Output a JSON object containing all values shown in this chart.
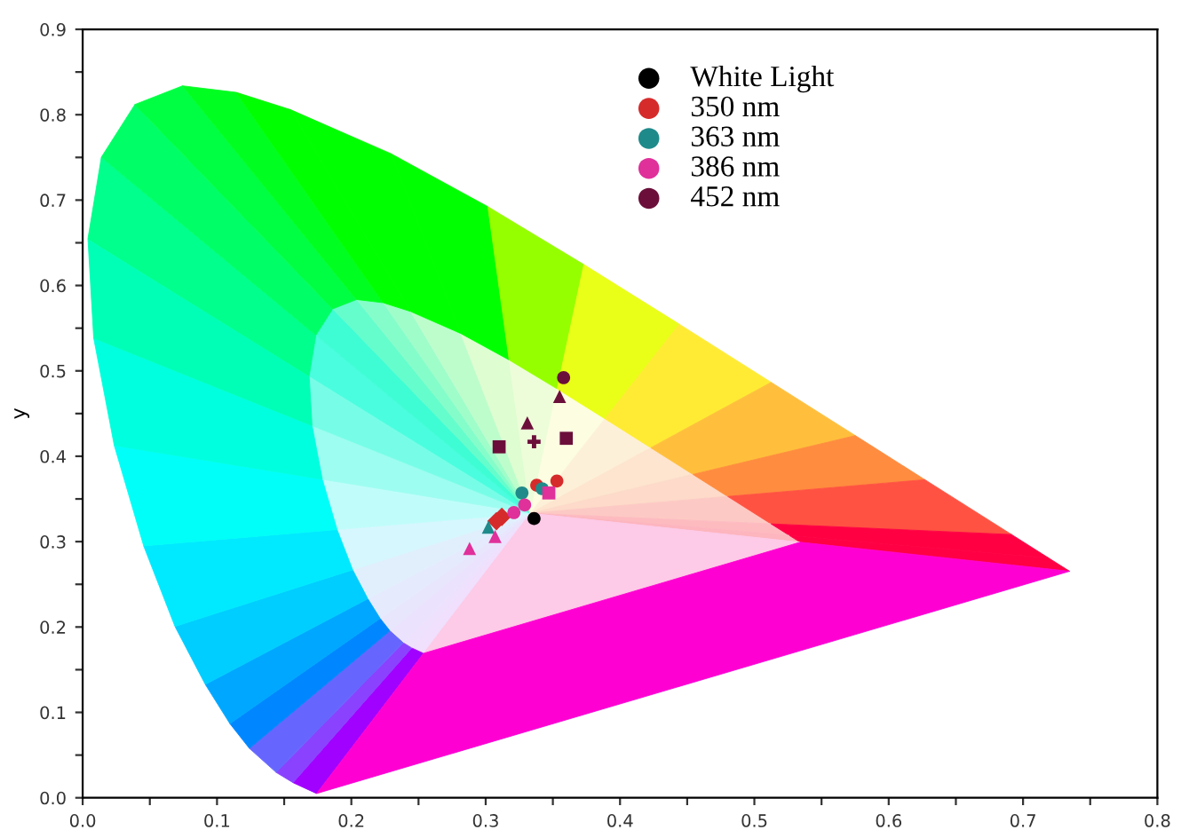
{
  "chart_data": {
    "type": "scatter",
    "ylabel": "y",
    "xlim": [
      0,
      0.8
    ],
    "ylim": [
      0,
      0.9
    ],
    "xticks": [
      {
        "value": 0,
        "label": "0.0"
      },
      {
        "value": 0.05,
        "label": null
      },
      {
        "value": 0.1,
        "label": "0.1"
      },
      {
        "value": 0.15,
        "label": null
      },
      {
        "value": 0.2,
        "label": "0.2"
      },
      {
        "value": 0.25,
        "label": null
      },
      {
        "value": 0.3,
        "label": "0.3"
      },
      {
        "value": 0.35,
        "label": null
      },
      {
        "value": 0.4,
        "label": "0.4"
      },
      {
        "value": 0.45,
        "label": null
      },
      {
        "value": 0.5,
        "label": "0.5"
      },
      {
        "value": 0.55,
        "label": null
      },
      {
        "value": 0.6,
        "label": "0.6"
      },
      {
        "value": 0.65,
        "label": null
      },
      {
        "value": 0.7,
        "label": "0.7"
      },
      {
        "value": 0.75,
        "label": null
      },
      {
        "value": 0.8,
        "label": "0.8"
      }
    ],
    "yticks": [
      {
        "value": 0,
        "label": "0.0"
      },
      {
        "value": 0.05,
        "label": null
      },
      {
        "value": 0.1,
        "label": "0.1"
      },
      {
        "value": 0.15,
        "label": null
      },
      {
        "value": 0.2,
        "label": "0.2"
      },
      {
        "value": 0.25,
        "label": null
      },
      {
        "value": 0.3,
        "label": "0.3"
      },
      {
        "value": 0.35,
        "label": null
      },
      {
        "value": 0.4,
        "label": "0.4"
      },
      {
        "value": 0.45,
        "label": null
      },
      {
        "value": 0.5,
        "label": "0.5"
      },
      {
        "value": 0.55,
        "label": null
      },
      {
        "value": 0.6,
        "label": "0.6"
      },
      {
        "value": 0.65,
        "label": null
      },
      {
        "value": 0.7,
        "label": "0.7"
      },
      {
        "value": 0.75,
        "label": null
      },
      {
        "value": 0.8,
        "label": "0.8"
      },
      {
        "value": 0.85,
        "label": null
      },
      {
        "value": 0.9,
        "label": "0.9"
      }
    ],
    "grid": false,
    "legend": "top right",
    "series": [
      {
        "name": "White Light",
        "color": "#000000",
        "marker": "circle",
        "x": [
          0.336
        ],
        "values": [
          0.327
        ]
      },
      {
        "name": "350 nm",
        "color": "#d62b2b",
        "marker": "circle",
        "x": [
          0.353,
          0.338
        ],
        "values": [
          0.371,
          0.366
        ]
      },
      {
        "color": "#d62b2b",
        "marker": "diamond",
        "x": [
          0.312,
          0.308
        ],
        "values": [
          0.329,
          0.324
        ]
      },
      {
        "name": "363 nm",
        "color": "#1f8a8a",
        "marker": "circle",
        "x": [
          0.327,
          0.342
        ],
        "values": [
          0.357,
          0.362
        ]
      },
      {
        "color": "#1f8a8a",
        "marker": "triangle",
        "x": [
          0.302
        ],
        "values": [
          0.317
        ]
      },
      {
        "name": "386 nm",
        "color": "#e0309a",
        "marker": "circle",
        "x": [
          0.329,
          0.321
        ],
        "values": [
          0.343,
          0.334
        ]
      },
      {
        "color": "#e0309a",
        "marker": "square",
        "x": [
          0.347
        ],
        "values": [
          0.357
        ]
      },
      {
        "color": "#e0309a",
        "marker": "triangle",
        "x": [
          0.307,
          0.288
        ],
        "values": [
          0.306,
          0.292
        ]
      },
      {
        "name": "452 nm",
        "color": "#6b0f3a",
        "marker": "circle",
        "x": [
          0.358
        ],
        "values": [
          0.492
        ]
      },
      {
        "color": "#6b0f3a",
        "marker": "triangle",
        "x": [
          0.355,
          0.331
        ],
        "values": [
          0.47,
          0.439
        ]
      },
      {
        "color": "#6b0f3a",
        "marker": "square",
        "x": [
          0.31,
          0.36
        ],
        "values": [
          0.411,
          0.421
        ]
      },
      {
        "color": "#6b0f3a",
        "marker": "cross",
        "x": [
          0.336
        ],
        "values": [
          0.417
        ]
      }
    ]
  }
}
